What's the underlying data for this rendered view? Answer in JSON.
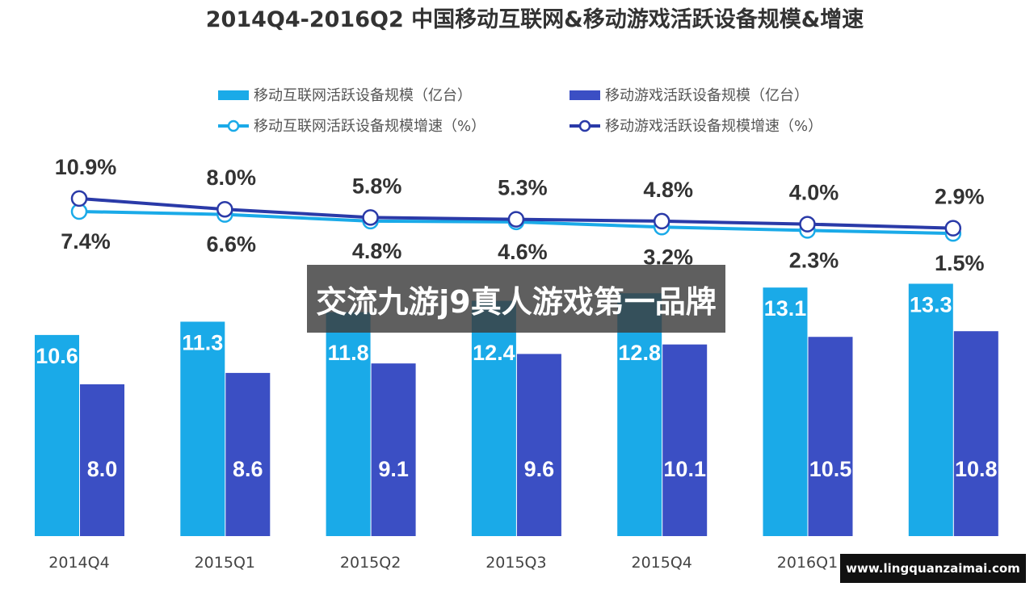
{
  "chart_data": {
    "type": "bar",
    "title": "2014Q4-2016Q2 中国移动互联网&移动游戏活跃设备规模&增速",
    "categories": [
      "2014Q4",
      "2015Q1",
      "2015Q2",
      "2015Q3",
      "2015Q4",
      "2016Q1",
      "2016Q2"
    ],
    "series": [
      {
        "name": "移动互联网活跃设备规模（亿台）",
        "type": "bar",
        "color": "#1aaae8",
        "values": [
          10.6,
          11.3,
          11.8,
          12.4,
          12.8,
          13.1,
          13.3
        ]
      },
      {
        "name": "移动游戏活跃设备规模（亿台）",
        "type": "bar",
        "color": "#3b4fc4",
        "values": [
          8.0,
          8.6,
          9.1,
          9.6,
          10.1,
          10.5,
          10.8
        ]
      },
      {
        "name": "移动互联网活跃设备规模增速（%）",
        "type": "line",
        "color": "#1aaae8",
        "values": [
          7.4,
          6.6,
          4.8,
          4.6,
          3.2,
          2.3,
          1.5
        ],
        "labels": [
          "7.4%",
          "6.6%",
          "4.8%",
          "4.6%",
          "3.2%",
          "2.3%",
          "1.5%"
        ]
      },
      {
        "name": "移动游戏活跃设备规模增速（%）",
        "type": "line",
        "color": "#2a3aa8",
        "values": [
          10.9,
          8.0,
          5.8,
          5.3,
          4.8,
          4.0,
          2.9
        ],
        "labels": [
          "10.9%",
          "8.0%",
          "5.8%",
          "5.3%",
          "4.8%",
          "4.0%",
          "2.9%"
        ]
      }
    ],
    "legend": "top",
    "grid": false
  },
  "overlay": {
    "banner": "交流九游j9真人游戏第一品牌",
    "watermark": "www.lingquanzaimai.com"
  }
}
